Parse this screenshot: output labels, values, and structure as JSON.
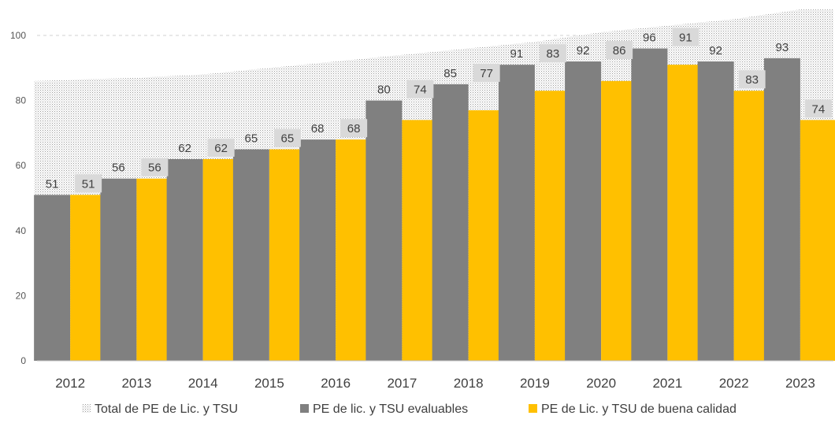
{
  "chart_data": {
    "type": "bar",
    "categories": [
      "2012",
      "2013",
      "2014",
      "2015",
      "2016",
      "2017",
      "2018",
      "2019",
      "2020",
      "2021",
      "2022",
      "2023"
    ],
    "series": [
      {
        "name": "Total de PE de Lic. y TSU",
        "kind": "area",
        "pattern": "dotted",
        "color": "#d9d9d9",
        "values": [
          86,
          87,
          88,
          90,
          92,
          94,
          96,
          98,
          101,
          103,
          105,
          108
        ]
      },
      {
        "name": "PE de lic. y TSU evaluables",
        "kind": "bar",
        "color": "#808080",
        "values": [
          51,
          56,
          62,
          65,
          68,
          80,
          85,
          91,
          92,
          96,
          92,
          93
        ]
      },
      {
        "name": "PE de Lic. y TSU de buena calidad",
        "kind": "bar",
        "color": "#ffc000",
        "values": [
          51,
          56,
          62,
          65,
          68,
          74,
          77,
          83,
          86,
          91,
          83,
          74
        ]
      }
    ],
    "title": "",
    "xlabel": "",
    "ylabel": "",
    "ylim": [
      0,
      110
    ],
    "yticks": [
      "0",
      "20",
      "40",
      "60",
      "80",
      "100"
    ],
    "grid": "horizontal dashed",
    "legend_position": "bottom",
    "data_labels": "on bars, series 2 and 3"
  }
}
